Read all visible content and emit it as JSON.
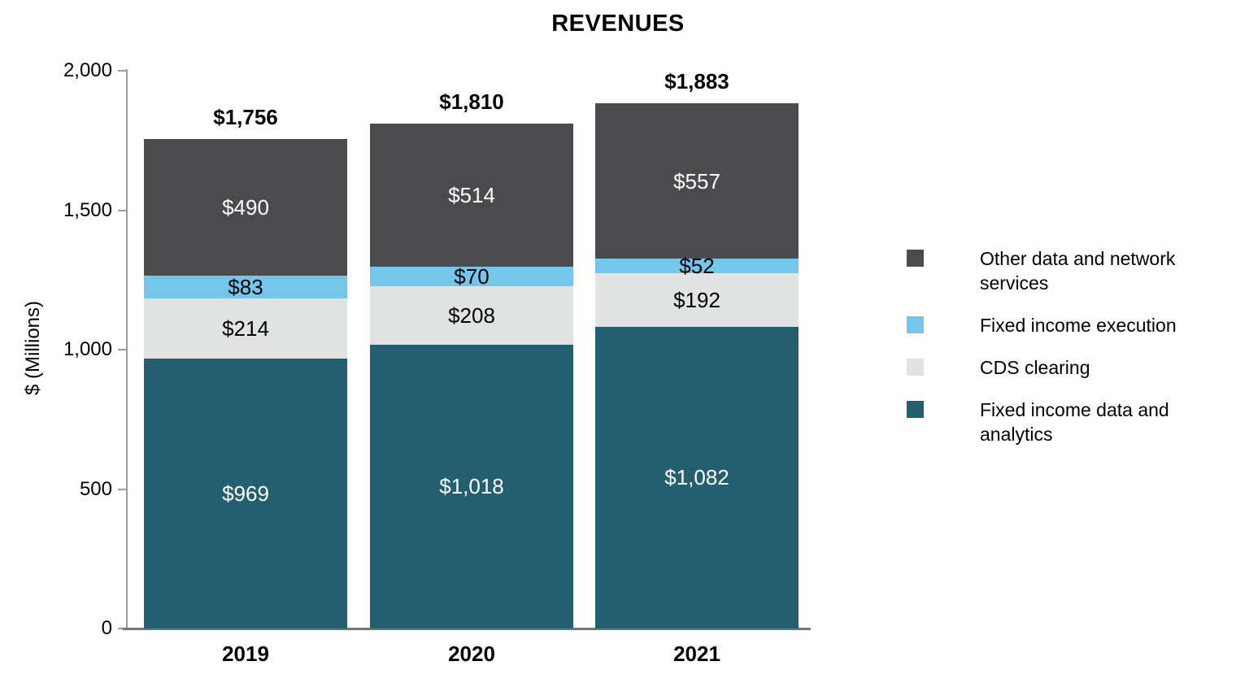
{
  "chart_data": {
    "type": "bar",
    "stacked": true,
    "title": "REVENUES",
    "ylabel": "$ (Millions)",
    "categories": [
      "2019",
      "2020",
      "2021"
    ],
    "series": [
      {
        "name": "Fixed income data and analytics",
        "values": [
          969,
          1018,
          1082
        ],
        "labels": [
          "$969",
          "$1,018",
          "$1,082"
        ],
        "color": "#235f70",
        "label_color": "#ffffff"
      },
      {
        "name": "CDS clearing",
        "values": [
          214,
          208,
          192
        ],
        "labels": [
          "$214",
          "$208",
          "$192"
        ],
        "color": "#e1e2e2",
        "label_color": "#000000"
      },
      {
        "name": "Fixed income execution",
        "values": [
          83,
          70,
          52
        ],
        "labels": [
          "$83",
          "$70",
          "$52"
        ],
        "color": "#74c6ea",
        "label_color": "#000000"
      },
      {
        "name": "Other data and network services",
        "values": [
          490,
          514,
          557
        ],
        "labels": [
          "$490",
          "$514",
          "$557"
        ],
        "color": "#4b4b4d",
        "label_color": "#ffffff"
      }
    ],
    "totals": [
      1756,
      1810,
      1883
    ],
    "total_labels": [
      "$1,756",
      "$1,810",
      "$1,883"
    ],
    "ylim": [
      0,
      2000
    ],
    "yticks": [
      {
        "value": 0,
        "label": "0"
      },
      {
        "value": 500,
        "label": "500"
      },
      {
        "value": 1000,
        "label": "1,000"
      },
      {
        "value": 1500,
        "label": "1,500"
      },
      {
        "value": 2000,
        "label": "2,000"
      }
    ],
    "grid": false,
    "legend": {
      "position": "right",
      "items": [
        {
          "label": "Other data and network services",
          "color": "#4b4b4d"
        },
        {
          "label": "Fixed income execution",
          "color": "#74c6ea"
        },
        {
          "label": "CDS clearing",
          "color": "#e1e2e2"
        },
        {
          "label": "Fixed income data and analytics",
          "color": "#235f70"
        }
      ]
    },
    "axis_color": "#9b9b9b",
    "baseline_color": "#767676"
  }
}
